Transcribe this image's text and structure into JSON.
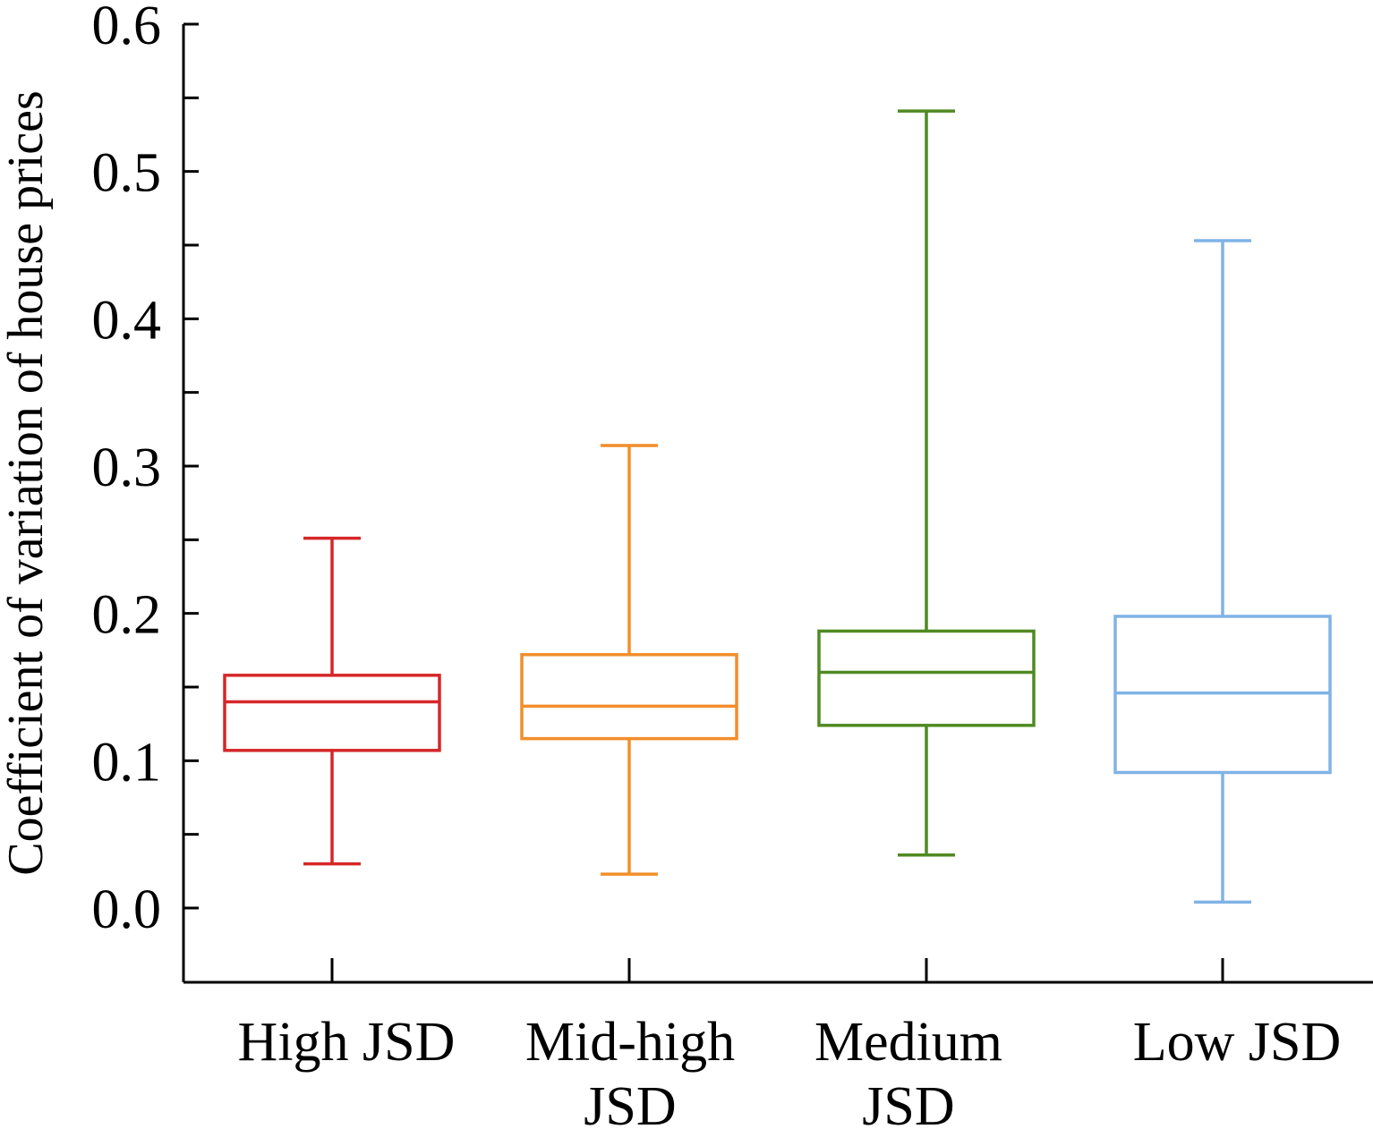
{
  "chart_data": {
    "type": "box",
    "title": "",
    "xlabel": "",
    "ylabel": "Coefficient of variation of house prices",
    "ylim": [
      -0.05,
      0.6
    ],
    "yticks": [
      "0.0",
      "0.1",
      "0.2",
      "0.3",
      "0.4",
      "0.5",
      "0.6"
    ],
    "grid": false,
    "categories": [
      {
        "label_lines": [
          "High JSD"
        ],
        "color": "#d62728",
        "min": 0.03,
        "q1": 0.107,
        "median": 0.14,
        "q3": 0.158,
        "max": 0.251
      },
      {
        "label_lines": [
          "Mid-high",
          "JSD"
        ],
        "color": "#f28e2b",
        "min": 0.023,
        "q1": 0.115,
        "median": 0.137,
        "q3": 0.172,
        "max": 0.314
      },
      {
        "label_lines": [
          "Medium",
          "JSD"
        ],
        "color": "#4f8a22",
        "min": 0.036,
        "q1": 0.124,
        "median": 0.16,
        "q3": 0.188,
        "max": 0.541
      },
      {
        "label_lines": [
          "Low JSD"
        ],
        "color": "#80b3e6",
        "min": 0.004,
        "q1": 0.092,
        "median": 0.146,
        "q3": 0.198,
        "max": 0.453
      }
    ]
  }
}
